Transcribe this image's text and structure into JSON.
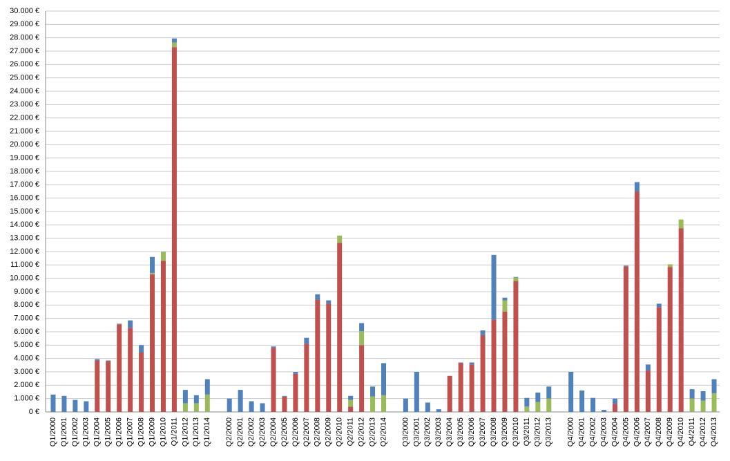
{
  "chart_data": {
    "type": "bar",
    "stacked": true,
    "grid": true,
    "categories": [
      "Q1/2000",
      "Q1/2001",
      "Q1/2002",
      "Q1/2003",
      "Q1/2004",
      "Q1/2005",
      "Q1/2006",
      "Q1/2007",
      "Q1/2008",
      "Q1/2009",
      "Q1/2010",
      "Q1/2011",
      "Q1/2012",
      "Q1/2013",
      "Q1/2014",
      null,
      "Q2/2000",
      "Q2/2001",
      "Q2/2002",
      "Q2/2003",
      "Q2/2004",
      "Q2/2005",
      "Q2/2006",
      "Q2/2007",
      "Q2/2008",
      "Q2/2009",
      "Q2/2010",
      "Q2/2011",
      "Q2/2012",
      "Q2/2013",
      "Q2/2014",
      null,
      "Q3/2000",
      "Q3/2001",
      "Q3/2002",
      "Q3/2003",
      "Q3/2004",
      "Q3/2005",
      "Q3/2006",
      "Q3/2007",
      "Q3/2008",
      "Q3/2009",
      "Q3/2010",
      "Q3/2011",
      "Q3/2012",
      "Q3/2013",
      null,
      "Q4/2000",
      "Q4/2001",
      "Q4/2002",
      "Q4/2003",
      "Q4/2004",
      "Q4/2005",
      "Q4/2006",
      "Q4/2007",
      "Q4/2008",
      "Q4/2009",
      "Q4/2010",
      "Q4/2011",
      "Q4/2012",
      "Q4/2013"
    ],
    "series": [
      {
        "color": "#c0504d",
        "values": [
          0,
          0,
          0,
          0,
          3850,
          3800,
          6550,
          6300,
          4450,
          10300,
          11300,
          27300,
          0,
          0,
          0,
          null,
          0,
          0,
          0,
          0,
          4800,
          1150,
          2850,
          5100,
          8400,
          8100,
          12650,
          400,
          5000,
          0,
          0,
          null,
          0,
          0,
          0,
          0,
          2700,
          3650,
          3550,
          5750,
          6900,
          7500,
          9800,
          0,
          0,
          0,
          null,
          0,
          0,
          0,
          0,
          600,
          10900,
          16500,
          3100,
          7850,
          10850,
          13750,
          0,
          0,
          0
        ]
      },
      {
        "color": "#9bbb59",
        "values": [
          0,
          0,
          0,
          0,
          0,
          0,
          0,
          0,
          0,
          100,
          700,
          350,
          650,
          650,
          1300,
          null,
          0,
          0,
          0,
          0,
          0,
          0,
          0,
          0,
          0,
          0,
          550,
          500,
          1050,
          1150,
          1250,
          null,
          0,
          0,
          0,
          0,
          0,
          0,
          0,
          0,
          0,
          850,
          250,
          400,
          750,
          1000,
          null,
          0,
          0,
          0,
          0,
          0,
          0,
          0,
          0,
          0,
          200,
          650,
          1000,
          850,
          1400
        ]
      },
      {
        "color": "#4f81bd",
        "values": [
          1300,
          1200,
          900,
          800,
          100,
          50,
          50,
          550,
          550,
          1200,
          0,
          300,
          1000,
          600,
          1150,
          null,
          1000,
          1650,
          800,
          650,
          100,
          50,
          150,
          450,
          400,
          250,
          0,
          300,
          600,
          750,
          2400,
          null,
          1000,
          3000,
          700,
          200,
          0,
          50,
          150,
          350,
          4850,
          200,
          50,
          650,
          700,
          900,
          null,
          3000,
          1600,
          1050,
          150,
          400,
          50,
          700,
          450,
          250,
          0,
          0,
          700,
          700,
          1050
        ]
      }
    ],
    "ylim": [
      0,
      30000
    ],
    "yticks": [
      {
        "value": 0,
        "label": "0 €"
      },
      {
        "value": 1000,
        "label": "1.000 €"
      },
      {
        "value": 2000,
        "label": "2.000 €"
      },
      {
        "value": 3000,
        "label": "3.000 €"
      },
      {
        "value": 4000,
        "label": "4.000 €"
      },
      {
        "value": 5000,
        "label": "5.000 €"
      },
      {
        "value": 6000,
        "label": "6.000 €"
      },
      {
        "value": 7000,
        "label": "7.000 €"
      },
      {
        "value": 8000,
        "label": "8.000 €"
      },
      {
        "value": 9000,
        "label": "9.000 €"
      },
      {
        "value": 10000,
        "label": "10.000 €"
      },
      {
        "value": 11000,
        "label": "11.000 €"
      },
      {
        "value": 12000,
        "label": "12.000 €"
      },
      {
        "value": 13000,
        "label": "13.000 €"
      },
      {
        "value": 14000,
        "label": "14.000 €"
      },
      {
        "value": 15000,
        "label": "15.000 €"
      },
      {
        "value": 16000,
        "label": "16.000 €"
      },
      {
        "value": 17000,
        "label": "17.000 €"
      },
      {
        "value": 18000,
        "label": "18.000 €"
      },
      {
        "value": 19000,
        "label": "19.000 €"
      },
      {
        "value": 20000,
        "label": "20.000 €"
      },
      {
        "value": 21000,
        "label": "21.000 €"
      },
      {
        "value": 22000,
        "label": "22.000 €"
      },
      {
        "value": 23000,
        "label": "23.000 €"
      },
      {
        "value": 24000,
        "label": "24.000 €"
      },
      {
        "value": 25000,
        "label": "25.000 €"
      },
      {
        "value": 26000,
        "label": "26.000 €"
      },
      {
        "value": 27000,
        "label": "27.000 €"
      },
      {
        "value": 28000,
        "label": "28.000 €"
      },
      {
        "value": 29000,
        "label": "29.000 €"
      },
      {
        "value": 30000,
        "label": "30.000 €"
      }
    ]
  }
}
